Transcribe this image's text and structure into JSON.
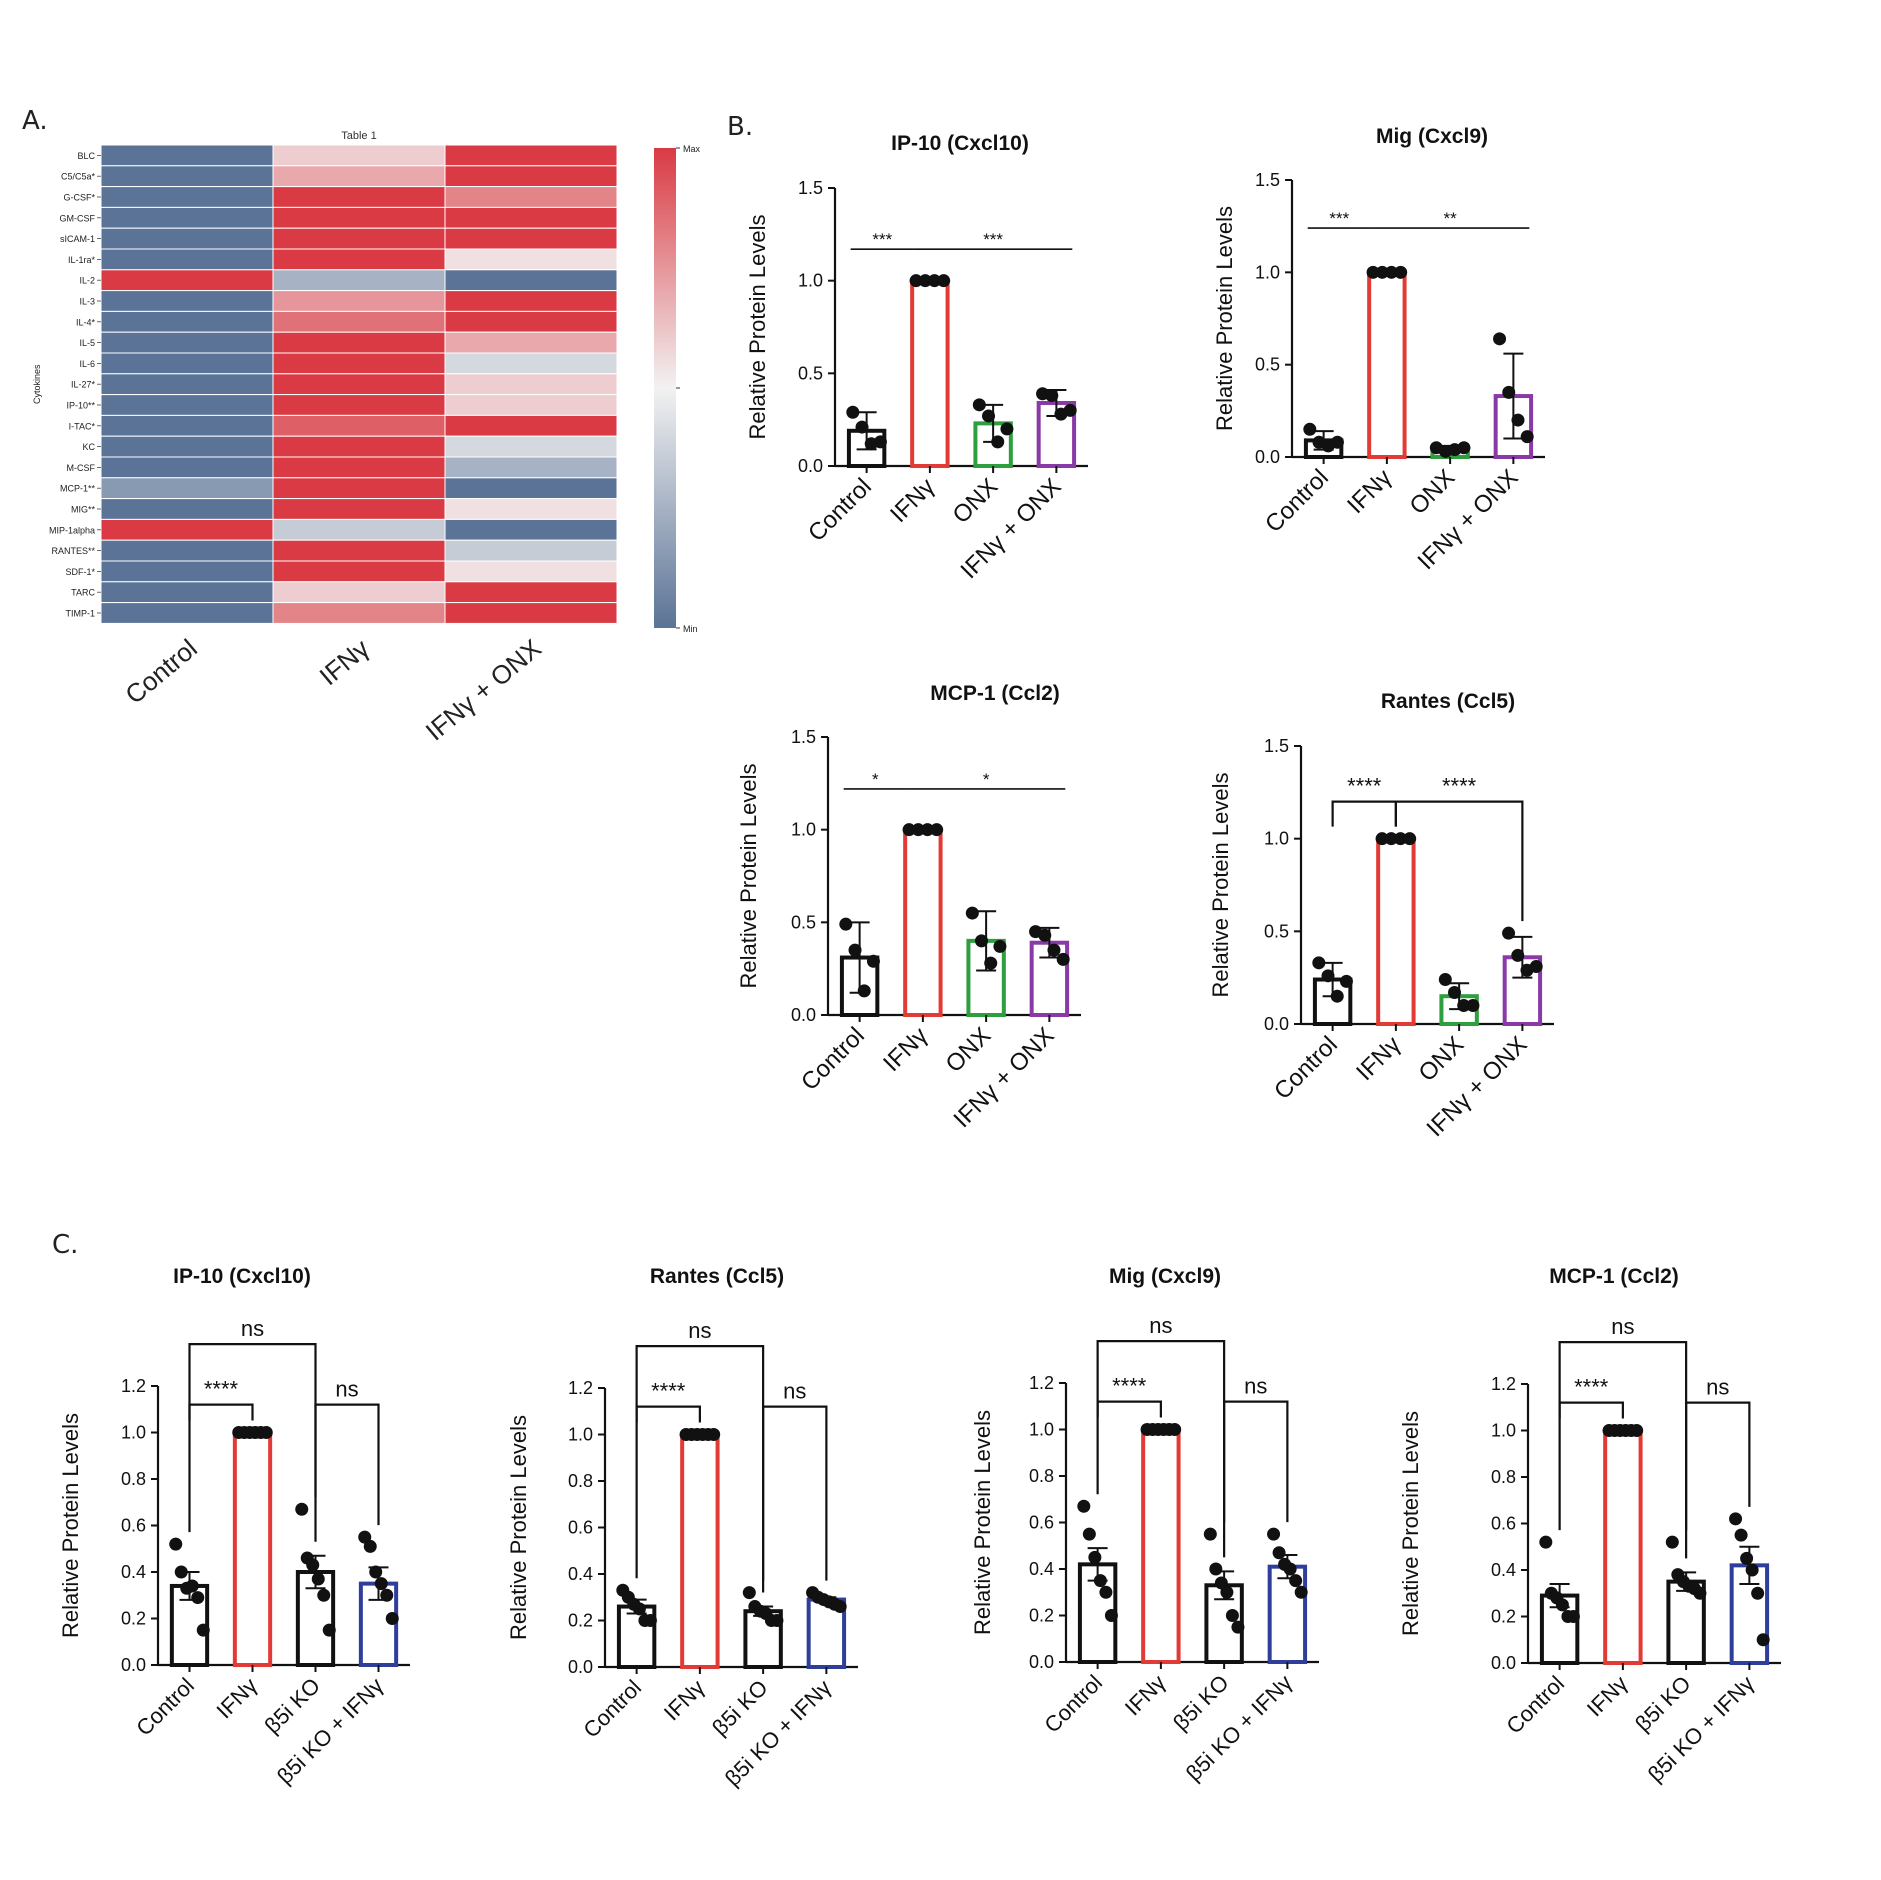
{
  "panels": {
    "A": {
      "label": "A."
    },
    "B": {
      "label": "B."
    },
    "C": {
      "label": "C."
    }
  },
  "colors": {
    "max": "#d93a43",
    "min": "#5b7396",
    "mid": "#f2f2f2",
    "control": "#111111",
    "ifng": "#e23b36",
    "onx": "#2e9e3e",
    "ifng_onx": "#8a3aa6",
    "ko_ifng": "#2f3e9a"
  },
  "chart_data": [
    {
      "id": "A",
      "type": "heatmap",
      "title": "Table 1",
      "ylabel": "Cytokines",
      "columns": [
        "Control",
        "IFNγ",
        "IFNγ + ONX"
      ],
      "colorbar": {
        "max_label": "Max",
        "min_label": "Min"
      },
      "rows": [
        "BLC",
        "C5/C5a*",
        "G-CSF*",
        "GM-CSF",
        "sICAM-1",
        "IL-1ra*",
        "IL-2",
        "IL-3",
        "IL-4*",
        "IL-5",
        "IL-6",
        "IL-27*",
        "IP-10**",
        "I-TAC*",
        "KC",
        "M-CSF",
        "MCP-1**",
        "MIG**",
        "MIP-1alpha",
        "RANTES**",
        "SDF-1*",
        "TARC",
        "TIMP-1"
      ],
      "values": [
        [
          0,
          0.6,
          1
        ],
        [
          0,
          0.7,
          1
        ],
        [
          0,
          1,
          0.8
        ],
        [
          0,
          1,
          1
        ],
        [
          0,
          1,
          1
        ],
        [
          0,
          1,
          0.55
        ],
        [
          1,
          0.25,
          0
        ],
        [
          0,
          0.75,
          1
        ],
        [
          0,
          0.85,
          1
        ],
        [
          0,
          1,
          0.7
        ],
        [
          0,
          1,
          0.4
        ],
        [
          0,
          1,
          0.6
        ],
        [
          0,
          1,
          0.6
        ],
        [
          0,
          0.9,
          1
        ],
        [
          0,
          1,
          0.4
        ],
        [
          0,
          1,
          0.25
        ],
        [
          0.15,
          1,
          0
        ],
        [
          0,
          1,
          0.55
        ],
        [
          1,
          0.35,
          0
        ],
        [
          0,
          1,
          0.35
        ],
        [
          0,
          1,
          0.55
        ],
        [
          0,
          0.6,
          1
        ],
        [
          0,
          0.8,
          1
        ]
      ]
    },
    {
      "id": "B1",
      "type": "bar",
      "title": "IP-10 (Cxcl10)",
      "ylabel": "Relative Protein Levels",
      "ylim": [
        0,
        1.5
      ],
      "yticks": [
        0.0,
        0.5,
        1.0,
        1.5
      ],
      "ytick_labels": [
        "0.0",
        "0.5",
        "1.0",
        "1.5"
      ],
      "categories": [
        "Control",
        "IFNγ",
        "ONX",
        "IFNγ + ONX"
      ],
      "values": [
        0.19,
        1.0,
        0.23,
        0.34
      ],
      "errors": [
        0.1,
        0,
        0.1,
        0.07
      ],
      "points": [
        [
          0.29,
          0.21,
          0.12,
          0.13
        ],
        [
          1,
          1,
          1,
          1
        ],
        [
          0.33,
          0.27,
          0.13,
          0.2
        ],
        [
          0.39,
          0.38,
          0.28,
          0.3
        ]
      ],
      "colors": [
        "control",
        "ifng",
        "onx",
        "ifng_onx"
      ],
      "error_mode": "sd",
      "significance": [
        {
          "from": 0,
          "to": 1,
          "label": "***",
          "y": 1.17,
          "style": "line"
        },
        {
          "from": 1,
          "to": 3,
          "label": "***",
          "y": 1.17,
          "style": "line"
        }
      ]
    },
    {
      "id": "B2",
      "type": "bar",
      "title": "Mig (Cxcl9)",
      "ylabel": "Relative Protein Levels",
      "ylim": [
        0,
        1.5
      ],
      "yticks": [
        0.0,
        0.5,
        1.0,
        1.5
      ],
      "ytick_labels": [
        "0.0",
        "0.5",
        "1.0",
        "1.5"
      ],
      "categories": [
        "Control",
        "IFNγ",
        "ONX",
        "IFNγ + ONX"
      ],
      "values": [
        0.09,
        1.0,
        0.04,
        0.33
      ],
      "errors": [
        0.05,
        0,
        0.02,
        0.23
      ],
      "points": [
        [
          0.15,
          0.08,
          0.06,
          0.08
        ],
        [
          1,
          1,
          1,
          1
        ],
        [
          0.05,
          0.03,
          0.04,
          0.05
        ],
        [
          0.64,
          0.35,
          0.2,
          0.11
        ]
      ],
      "colors": [
        "control",
        "ifng",
        "onx",
        "ifng_onx"
      ],
      "error_mode": "sd",
      "significance": [
        {
          "from": 0,
          "to": 1,
          "label": "***",
          "y": 1.24,
          "style": "line"
        },
        {
          "from": 1,
          "to": 3,
          "label": "**",
          "y": 1.24,
          "style": "line"
        }
      ]
    },
    {
      "id": "B3",
      "type": "bar",
      "title": "MCP-1 (Ccl2)",
      "ylabel": "Relative Protein Levels",
      "ylim": [
        0,
        1.5
      ],
      "yticks": [
        0.0,
        0.5,
        1.0,
        1.5
      ],
      "ytick_labels": [
        "0.0",
        "0.5",
        "1.0",
        "1.5"
      ],
      "categories": [
        "Control",
        "IFNγ",
        "ONX",
        "IFNγ + ONX"
      ],
      "values": [
        0.31,
        1.0,
        0.4,
        0.39
      ],
      "errors": [
        0.19,
        0,
        0.16,
        0.08
      ],
      "points": [
        [
          0.49,
          0.35,
          0.13,
          0.29
        ],
        [
          1,
          1,
          1,
          1
        ],
        [
          0.55,
          0.4,
          0.28,
          0.37
        ],
        [
          0.45,
          0.43,
          0.35,
          0.3
        ]
      ],
      "colors": [
        "control",
        "ifng",
        "onx",
        "ifng_onx"
      ],
      "error_mode": "sd",
      "significance": [
        {
          "from": 0,
          "to": 1,
          "label": "*",
          "y": 1.22,
          "style": "line"
        },
        {
          "from": 1,
          "to": 3,
          "label": "*",
          "y": 1.22,
          "style": "line"
        }
      ]
    },
    {
      "id": "B4",
      "type": "bar",
      "title": "Rantes (Ccl5)",
      "ylabel": "Relative Protein Levels",
      "ylim": [
        0,
        1.5
      ],
      "yticks": [
        0.0,
        0.5,
        1.0,
        1.5
      ],
      "ytick_labels": [
        "0.0",
        "0.5",
        "1.0",
        "1.5"
      ],
      "categories": [
        "Control",
        "IFNγ",
        "ONX",
        "IFNγ + ONX"
      ],
      "values": [
        0.24,
        1.0,
        0.15,
        0.36
      ],
      "errors": [
        0.09,
        0,
        0.07,
        0.11
      ],
      "points": [
        [
          0.33,
          0.26,
          0.15,
          0.23
        ],
        [
          1,
          1,
          1,
          1
        ],
        [
          0.24,
          0.17,
          0.1,
          0.1
        ],
        [
          0.49,
          0.37,
          0.29,
          0.31
        ]
      ],
      "colors": [
        "control",
        "ifng",
        "onx",
        "ifng_onx"
      ],
      "error_mode": "sd",
      "significance": [
        {
          "from": 0,
          "to": 1,
          "label": "****",
          "y": 1.2,
          "style": "bracket"
        },
        {
          "from": 1,
          "to": 3,
          "label": "****",
          "y": 1.2,
          "style": "bracket"
        }
      ]
    },
    {
      "id": "C1",
      "type": "bar",
      "title": "IP-10 (Cxcl10)",
      "ylabel": "Relative Protein Levels",
      "ylim": [
        0,
        1.2
      ],
      "yticks": [
        0,
        0.2,
        0.4,
        0.6,
        0.8,
        1.0,
        1.2
      ],
      "ytick_labels": [
        "0.0",
        "0.2",
        "0.4",
        "0.6",
        "0.8",
        "1.0",
        "1.2"
      ],
      "categories": [
        "Control",
        "IFNγ",
        "β5i KO",
        "β5i KO + IFNγ"
      ],
      "values": [
        0.34,
        1.0,
        0.4,
        0.35
      ],
      "errors": [
        0.06,
        0,
        0.07,
        0.07
      ],
      "points": [
        [
          0.52,
          0.4,
          0.33,
          0.34,
          0.29,
          0.15
        ],
        [
          1,
          1,
          1,
          1,
          1,
          1
        ],
        [
          0.67,
          0.46,
          0.43,
          0.37,
          0.3,
          0.15
        ],
        [
          0.55,
          0.51,
          0.4,
          0.35,
          0.3,
          0.2
        ]
      ],
      "colors": [
        "control",
        "ifng",
        "control",
        "ko_ifng"
      ],
      "error_mode": "sem",
      "significance": [
        {
          "from": 0,
          "to": 1,
          "label": "****",
          "y": 1.12,
          "style": "bracket"
        },
        {
          "from": 2,
          "to": 3,
          "label": "ns",
          "y": 1.12,
          "style": "bracket"
        },
        {
          "from": 0,
          "to": 2,
          "label": "ns",
          "y": 1.38,
          "style": "bracket"
        }
      ]
    },
    {
      "id": "C2",
      "type": "bar",
      "title": "Rantes (Ccl5)",
      "ylabel": "Relative Protein Levels",
      "ylim": [
        0,
        1.2
      ],
      "yticks": [
        0,
        0.2,
        0.4,
        0.6,
        0.8,
        1.0,
        1.2
      ],
      "ytick_labels": [
        "0.0",
        "0.2",
        "0.4",
        "0.6",
        "0.8",
        "1.0",
        "1.2"
      ],
      "categories": [
        "Control",
        "IFNγ",
        "β5i KO",
        "β5i KO + IFNγ"
      ],
      "values": [
        0.26,
        1.0,
        0.24,
        0.29
      ],
      "errors": [
        0.03,
        0,
        0.02,
        0.01
      ],
      "points": [
        [
          0.33,
          0.3,
          0.27,
          0.25,
          0.2,
          0.2
        ],
        [
          1,
          1,
          1,
          1,
          1,
          1
        ],
        [
          0.32,
          0.26,
          0.24,
          0.23,
          0.2,
          0.2
        ],
        [
          0.32,
          0.3,
          0.29,
          0.28,
          0.27,
          0.26
        ]
      ],
      "colors": [
        "control",
        "ifng",
        "control",
        "ko_ifng"
      ],
      "error_mode": "sem",
      "significance": [
        {
          "from": 0,
          "to": 1,
          "label": "****",
          "y": 1.12,
          "style": "bracket"
        },
        {
          "from": 2,
          "to": 3,
          "label": "ns",
          "y": 1.12,
          "style": "bracket"
        },
        {
          "from": 0,
          "to": 2,
          "label": "ns",
          "y": 1.38,
          "style": "bracket"
        }
      ]
    },
    {
      "id": "C3",
      "type": "bar",
      "title": "Mig (Cxcl9)",
      "ylabel": "Relative Protein Levels",
      "ylim": [
        0,
        1.2
      ],
      "yticks": [
        0,
        0.2,
        0.4,
        0.6,
        0.8,
        1.0,
        1.2
      ],
      "ytick_labels": [
        "0.0",
        "0.2",
        "0.4",
        "0.6",
        "0.8",
        "1.0",
        "1.2"
      ],
      "categories": [
        "Control",
        "IFNγ",
        "β5i KO",
        "β5i KO + IFNγ"
      ],
      "values": [
        0.42,
        1.0,
        0.33,
        0.41
      ],
      "errors": [
        0.07,
        0,
        0.06,
        0.05
      ],
      "points": [
        [
          0.67,
          0.55,
          0.45,
          0.35,
          0.3,
          0.2
        ],
        [
          1,
          1,
          1,
          1,
          1,
          1
        ],
        [
          0.55,
          0.4,
          0.34,
          0.3,
          0.2,
          0.15
        ],
        [
          0.55,
          0.47,
          0.42,
          0.4,
          0.35,
          0.3
        ]
      ],
      "colors": [
        "control",
        "ifng",
        "control",
        "ko_ifng"
      ],
      "error_mode": "sem",
      "significance": [
        {
          "from": 0,
          "to": 1,
          "label": "****",
          "y": 1.12,
          "style": "bracket"
        },
        {
          "from": 2,
          "to": 3,
          "label": "ns",
          "y": 1.12,
          "style": "bracket"
        },
        {
          "from": 0,
          "to": 2,
          "label": "ns",
          "y": 1.38,
          "style": "bracket"
        }
      ]
    },
    {
      "id": "C4",
      "type": "bar",
      "title": "MCP-1 (Ccl2)",
      "ylabel": "Relative Protein Levels",
      "ylim": [
        0,
        1.2
      ],
      "yticks": [
        0,
        0.2,
        0.4,
        0.6,
        0.8,
        1.0,
        1.2
      ],
      "ytick_labels": [
        "0.0",
        "0.2",
        "0.4",
        "0.6",
        "0.8",
        "1.0",
        "1.2"
      ],
      "categories": [
        "Control",
        "IFNγ",
        "β5i KO",
        "β5i KO + IFNγ"
      ],
      "values": [
        0.29,
        1.0,
        0.35,
        0.42
      ],
      "errors": [
        0.05,
        0,
        0.04,
        0.08
      ],
      "points": [
        [
          0.52,
          0.3,
          0.28,
          0.25,
          0.2,
          0.2
        ],
        [
          1,
          1,
          1,
          1,
          1,
          1
        ],
        [
          0.52,
          0.38,
          0.35,
          0.33,
          0.32,
          0.3
        ],
        [
          0.62,
          0.55,
          0.45,
          0.4,
          0.3,
          0.1
        ]
      ],
      "colors": [
        "control",
        "ifng",
        "control",
        "ko_ifng"
      ],
      "error_mode": "sem",
      "significance": [
        {
          "from": 0,
          "to": 1,
          "label": "****",
          "y": 1.12,
          "style": "bracket"
        },
        {
          "from": 2,
          "to": 3,
          "label": "ns",
          "y": 1.12,
          "style": "bracket"
        },
        {
          "from": 0,
          "to": 2,
          "label": "ns",
          "y": 1.38,
          "style": "bracket"
        }
      ]
    }
  ]
}
